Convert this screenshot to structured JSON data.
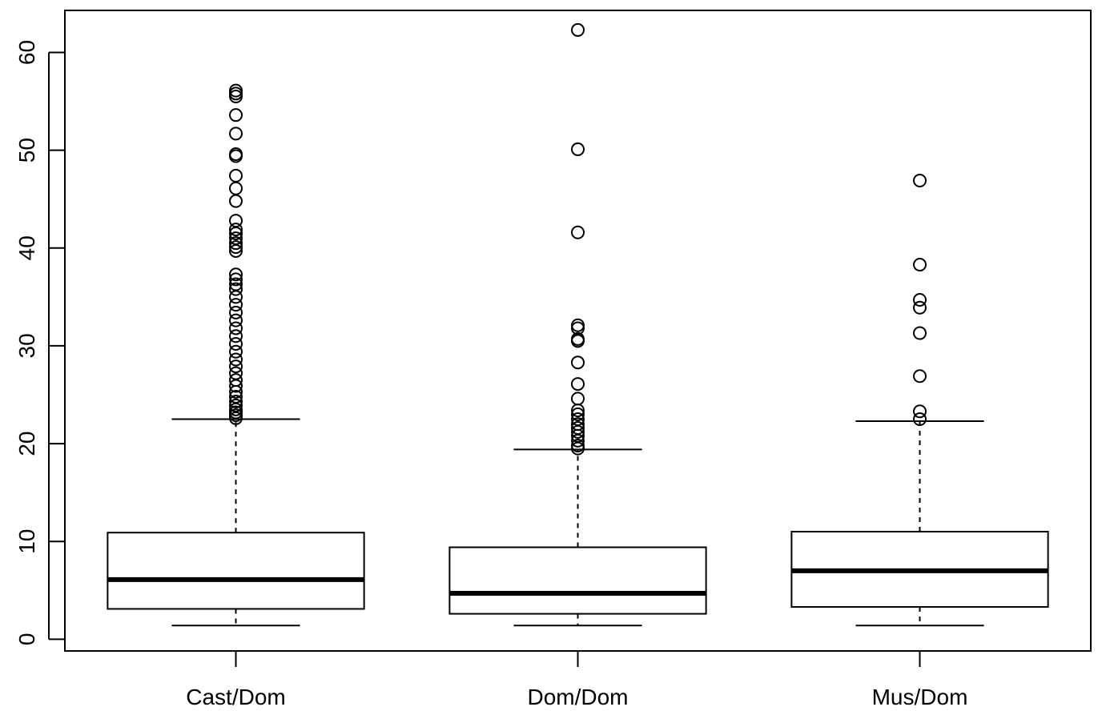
{
  "chart_data": {
    "type": "boxplot",
    "title": "",
    "xlabel": "",
    "ylabel": "",
    "ylim": [
      -1.2,
      64.3
    ],
    "yticks": [
      0,
      10,
      20,
      30,
      40,
      50,
      60
    ],
    "grid": false,
    "legend": "none",
    "categories": [
      "Cast/Dom",
      "Dom/Dom",
      "Mus/Dom"
    ],
    "series": [
      {
        "whisker_low": 1.4,
        "q1": 3.1,
        "median": 6.1,
        "q3": 10.9,
        "whisker_high": 22.5,
        "outliers": [
          22.6,
          22.9,
          23.2,
          23.5,
          23.9,
          24.3,
          24.8,
          25.3,
          25.9,
          26.5,
          27.2,
          27.9,
          28.6,
          29.4,
          30.2,
          31.0,
          31.8,
          32.6,
          33.4,
          34.2,
          35.0,
          35.8,
          36.3,
          36.8,
          37.3,
          39.7,
          40.1,
          40.5,
          41.0,
          41.5,
          41.9,
          42.8,
          44.8,
          46.1,
          47.4,
          49.4,
          49.6,
          51.7,
          53.6,
          55.5,
          55.8,
          56.1
        ]
      },
      {
        "whisker_low": 1.4,
        "q1": 2.6,
        "median": 4.7,
        "q3": 9.4,
        "whisker_high": 19.4,
        "outliers": [
          19.5,
          19.8,
          20.3,
          20.8,
          21.2,
          21.6,
          22.0,
          22.5,
          23.0,
          23.4,
          24.6,
          26.1,
          28.3,
          30.5,
          30.7,
          31.8,
          32.1,
          41.6,
          50.1,
          62.3
        ]
      },
      {
        "whisker_low": 1.4,
        "q1": 3.3,
        "median": 7.0,
        "q3": 11.0,
        "whisker_high": 22.3,
        "outliers": [
          22.5,
          23.3,
          26.9,
          31.3,
          33.9,
          34.7,
          38.3,
          46.9
        ]
      }
    ]
  }
}
